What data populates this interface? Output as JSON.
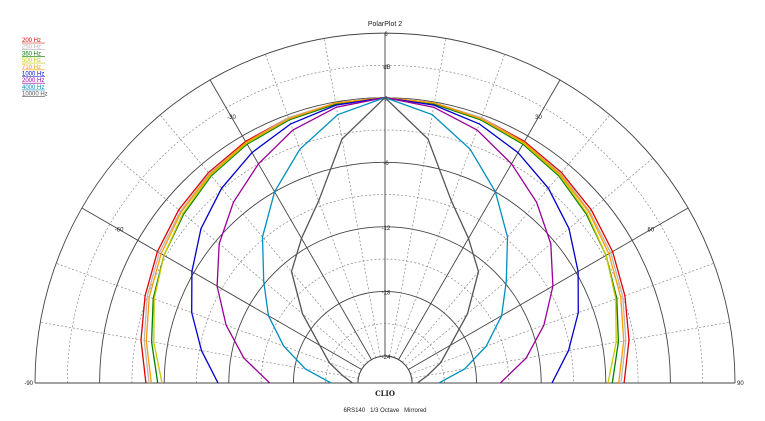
{
  "chart_data": {
    "type": "polar",
    "title": "PolarPlot 2",
    "footer": "6RS140   1/3 Octave   Mirrored",
    "brand": "CLIO",
    "unit_label": "dB",
    "radial_range": [
      -24,
      6
    ],
    "radial_ticks": [
      {
        "value": 6,
        "label": "6"
      },
      {
        "value": 0,
        "label": "0"
      },
      {
        "value": -6,
        "label": "-6"
      },
      {
        "value": -12,
        "label": "-12"
      },
      {
        "value": -18,
        "label": "-18"
      },
      {
        "value": -24,
        "label": "-24"
      }
    ],
    "angle_ticks": [
      {
        "value": -90,
        "label": "-90"
      },
      {
        "value": -60,
        "label": "-60"
      },
      {
        "value": -30,
        "label": "-30"
      },
      {
        "value": 30,
        "label": "30"
      },
      {
        "value": 60,
        "label": "60"
      },
      {
        "value": 90,
        "label": "90"
      }
    ],
    "grid": true,
    "legend_position": "top-left",
    "angles": [
      0,
      10,
      20,
      30,
      40,
      50,
      60,
      70,
      80,
      90
    ],
    "series": [
      {
        "name": "200 Hz",
        "color": "#e00000",
        "values": [
          0,
          -0.1,
          -0.3,
          -0.6,
          -1.0,
          -1.5,
          -2.1,
          -2.8,
          -3.5,
          -4.3
        ]
      },
      {
        "name": "250 Hz",
        "color": "#b8b8b8",
        "values": [
          0,
          -0.1,
          -0.3,
          -0.7,
          -1.1,
          -1.7,
          -2.3,
          -3.0,
          -3.8,
          -4.6
        ]
      },
      {
        "name": "360 Hz",
        "color": "#008000",
        "values": [
          0,
          -0.2,
          -0.5,
          -0.9,
          -1.4,
          -2.1,
          -2.8,
          -3.6,
          -4.5,
          -5.4
        ]
      },
      {
        "name": "500 Hz",
        "color": "#c8c800",
        "values": [
          0,
          -0.1,
          -0.4,
          -0.8,
          -1.3,
          -2.0,
          -2.8,
          -3.7,
          -4.7,
          -5.8
        ]
      },
      {
        "name": "710 Hz",
        "color": "#ff9900",
        "values": [
          0,
          -0.1,
          -0.4,
          -0.7,
          -1.2,
          -1.8,
          -2.5,
          -3.2,
          -4.0,
          -4.8
        ]
      },
      {
        "name": "1000 Hz",
        "color": "#0000cc",
        "values": [
          0,
          -0.3,
          -0.9,
          -1.8,
          -2.9,
          -4.2,
          -5.8,
          -7.4,
          -9.2,
          -11.0
        ]
      },
      {
        "name": "2000 Hz",
        "color": "#990099",
        "values": [
          0,
          -0.5,
          -1.5,
          -3.0,
          -4.6,
          -6.4,
          -8.5,
          -10.8,
          -13.2,
          -15.8
        ]
      },
      {
        "name": "4000 Hz",
        "color": "#008fbf",
        "values": [
          0,
          -1.2,
          -3.4,
          -6.0,
          -8.8,
          -11.8,
          -14.0,
          -16.5,
          -19.0,
          -21.5
        ]
      },
      {
        "name": "10000 Hz",
        "color": "#555555",
        "values": [
          0,
          -3.5,
          -8.5,
          -11.0,
          -13.0,
          -16.5,
          -19.5,
          -21.0,
          -22.5,
          -23.5
        ]
      }
    ]
  }
}
